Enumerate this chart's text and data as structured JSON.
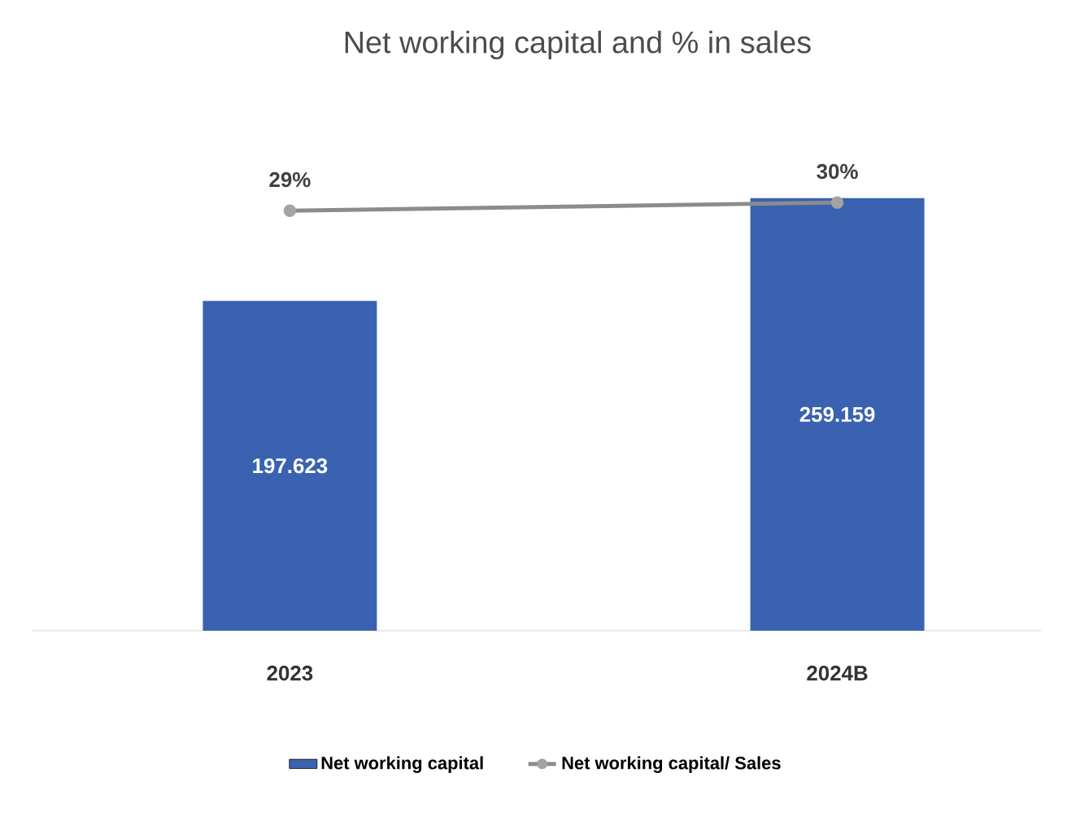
{
  "chart_data": {
    "type": "bar",
    "title": "Net working capital and % in sales",
    "categories": [
      "2023",
      "2024B"
    ],
    "series": [
      {
        "name": "Net working capital",
        "color": "#3a62b0",
        "values": [
          197.623,
          259.159
        ],
        "value_labels": [
          "197.623",
          "259.159"
        ]
      },
      {
        "name": "Net working capital/ Sales",
        "type": "line",
        "axis": "y2",
        "color": "#8c8c8c",
        "values": [
          29,
          30
        ],
        "value_labels": [
          "29%",
          "30%"
        ]
      }
    ],
    "tick_labels": "x",
    "legend": "bottom",
    "marker": "circle"
  }
}
